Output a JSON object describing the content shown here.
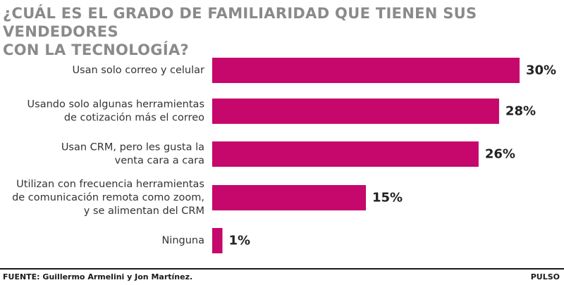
{
  "title_lines": [
    "¿CUÁL ES EL GRADO DE FAMILIARIDAD QUE TIENEN SUS VENDEDORES",
    "CON LA TECNOLOGÍA?"
  ],
  "footer": {
    "source": "FUENTE: Guillermo Armelini y Jon Martínez.",
    "brand": "PULSO"
  },
  "colors": {
    "bar": "#c6076c",
    "title": "#8a8a8a"
  },
  "chart_data": {
    "type": "bar",
    "orientation": "horizontal",
    "title": "¿CUÁL ES EL GRADO DE FAMILIARIDAD QUE TIENEN SUS VENDEDORES CON LA TECNOLOGÍA?",
    "categories": [
      [
        "Usan solo correo y celular"
      ],
      [
        "Usando solo algunas herramientas",
        "de cotización más el correo"
      ],
      [
        "Usan CRM, pero les gusta la",
        "venta cara a cara"
      ],
      [
        "Utilizan con frecuencia herramientas",
        "de comunicación remota como zoom,",
        "y se alimentan del CRM"
      ],
      [
        "Ninguna"
      ]
    ],
    "values": [
      30,
      28,
      26,
      15,
      1
    ],
    "value_labels": [
      "30%",
      "28%",
      "26%",
      "15%",
      "1%"
    ],
    "unit": "%",
    "xlim": [
      0,
      30
    ],
    "grid": false,
    "legend": "none"
  }
}
